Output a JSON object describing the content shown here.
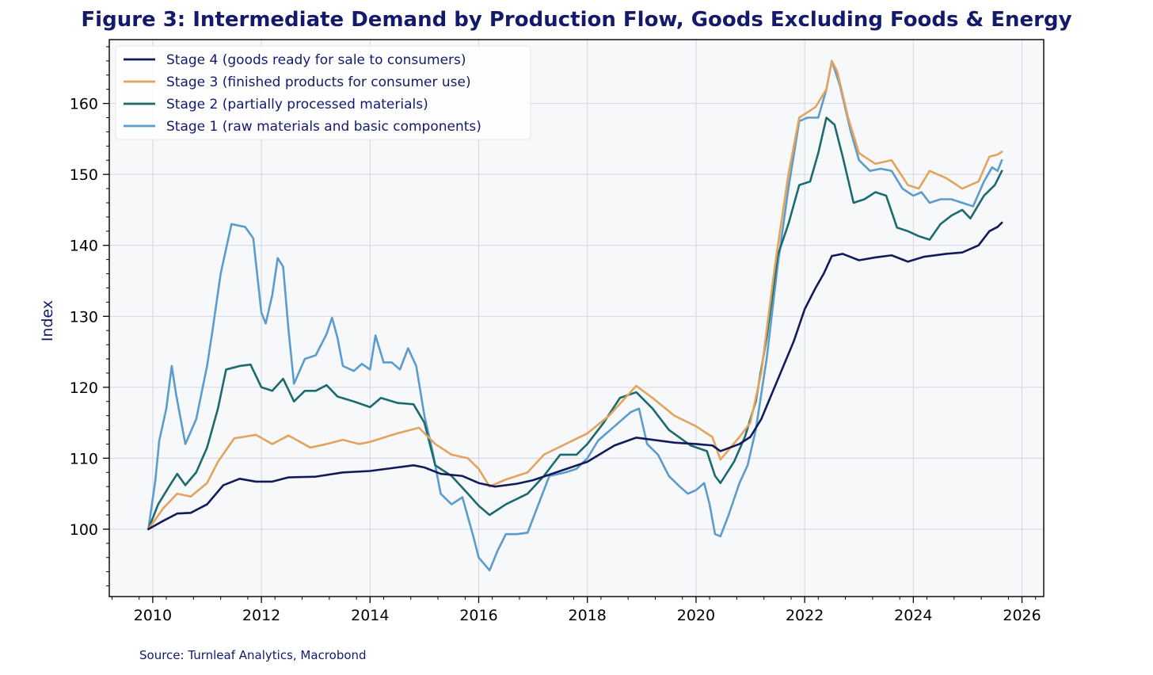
{
  "title": "Figure 3: Intermediate Demand by Production Flow, Goods Excluding Foods & Energy",
  "source": "Source: Turnleaf Analytics, Macrobond",
  "colors": {
    "title": "#131a6b",
    "plot_bg": "#f7f8fa",
    "grid": "#d3d6e4",
    "axis": "#000000"
  },
  "chart_data": {
    "type": "line",
    "title": "Figure 3: Intermediate Demand by Production Flow, Goods Excluding Foods & Energy",
    "xlabel": "",
    "ylabel": "Index",
    "xlim": [
      2009.2,
      2026.4
    ],
    "ylim": [
      90.5,
      169
    ],
    "x_ticks": [
      2010,
      2012,
      2014,
      2016,
      2018,
      2020,
      2022,
      2024,
      2026
    ],
    "y_ticks": [
      100,
      110,
      120,
      130,
      140,
      150,
      160
    ],
    "grid": true,
    "legend_position": "top-left",
    "series": [
      {
        "name": "Stage 4 (goods ready for sale to consumers)",
        "color": "#131a5c",
        "points": [
          [
            2009.92,
            100
          ],
          [
            2010.2,
            101.2
          ],
          [
            2010.45,
            102.2
          ],
          [
            2010.7,
            102.3
          ],
          [
            2011.0,
            103.5
          ],
          [
            2011.3,
            106.2
          ],
          [
            2011.6,
            107.1
          ],
          [
            2011.9,
            106.7
          ],
          [
            2012.2,
            106.7
          ],
          [
            2012.5,
            107.3
          ],
          [
            2013.0,
            107.4
          ],
          [
            2013.5,
            108
          ],
          [
            2014.0,
            108.2
          ],
          [
            2014.5,
            108.7
          ],
          [
            2014.8,
            109
          ],
          [
            2015.0,
            108.7
          ],
          [
            2015.3,
            107.8
          ],
          [
            2015.7,
            107.5
          ],
          [
            2016.0,
            106.5
          ],
          [
            2016.3,
            106
          ],
          [
            2016.7,
            106.4
          ],
          [
            2017.0,
            106.9
          ],
          [
            2017.5,
            108.2
          ],
          [
            2018.0,
            109.5
          ],
          [
            2018.5,
            111.8
          ],
          [
            2018.9,
            112.9
          ],
          [
            2019.2,
            112.6
          ],
          [
            2019.6,
            112.2
          ],
          [
            2020.0,
            112
          ],
          [
            2020.3,
            111.8
          ],
          [
            2020.45,
            111
          ],
          [
            2020.8,
            112
          ],
          [
            2021.0,
            113
          ],
          [
            2021.2,
            115.5
          ],
          [
            2021.5,
            121
          ],
          [
            2021.8,
            126.5
          ],
          [
            2022.0,
            131
          ],
          [
            2022.2,
            134
          ],
          [
            2022.35,
            136
          ],
          [
            2022.5,
            138.5
          ],
          [
            2022.7,
            138.8
          ],
          [
            2023.0,
            137.9
          ],
          [
            2023.3,
            138.3
          ],
          [
            2023.6,
            138.6
          ],
          [
            2023.9,
            137.7
          ],
          [
            2024.2,
            138.4
          ],
          [
            2024.6,
            138.8
          ],
          [
            2024.9,
            139
          ],
          [
            2025.2,
            140
          ],
          [
            2025.4,
            142
          ],
          [
            2025.55,
            142.6
          ],
          [
            2025.63,
            143.2
          ]
        ]
      },
      {
        "name": "Stage 3 (finished products for consumer use)",
        "color": "#e3a35c",
        "points": [
          [
            2009.92,
            100
          ],
          [
            2010.2,
            103
          ],
          [
            2010.45,
            105
          ],
          [
            2010.7,
            104.6
          ],
          [
            2011.0,
            106.5
          ],
          [
            2011.2,
            109.5
          ],
          [
            2011.5,
            112.8
          ],
          [
            2011.9,
            113.3
          ],
          [
            2012.2,
            112
          ],
          [
            2012.5,
            113.2
          ],
          [
            2012.9,
            111.5
          ],
          [
            2013.2,
            112
          ],
          [
            2013.5,
            112.6
          ],
          [
            2013.8,
            112
          ],
          [
            2014.0,
            112.3
          ],
          [
            2014.5,
            113.5
          ],
          [
            2014.9,
            114.3
          ],
          [
            2015.2,
            112
          ],
          [
            2015.5,
            110.5
          ],
          [
            2015.8,
            110
          ],
          [
            2016.0,
            108.5
          ],
          [
            2016.2,
            106
          ],
          [
            2016.5,
            107
          ],
          [
            2016.9,
            108
          ],
          [
            2017.2,
            110.5
          ],
          [
            2017.6,
            112
          ],
          [
            2018.0,
            113.5
          ],
          [
            2018.4,
            116
          ],
          [
            2018.9,
            120.2
          ],
          [
            2019.2,
            118.5
          ],
          [
            2019.6,
            116
          ],
          [
            2020.0,
            114.5
          ],
          [
            2020.3,
            113
          ],
          [
            2020.45,
            109.8
          ],
          [
            2020.8,
            113
          ],
          [
            2021.0,
            115
          ],
          [
            2021.2,
            122
          ],
          [
            2021.45,
            137
          ],
          [
            2021.7,
            150
          ],
          [
            2021.9,
            158
          ],
          [
            2022.2,
            159.5
          ],
          [
            2022.4,
            162
          ],
          [
            2022.5,
            166
          ],
          [
            2022.6,
            164.5
          ],
          [
            2022.8,
            158
          ],
          [
            2023.0,
            153
          ],
          [
            2023.3,
            151.5
          ],
          [
            2023.6,
            152
          ],
          [
            2023.9,
            148.5
          ],
          [
            2024.1,
            148
          ],
          [
            2024.3,
            150.5
          ],
          [
            2024.6,
            149.5
          ],
          [
            2024.9,
            148
          ],
          [
            2025.2,
            149
          ],
          [
            2025.4,
            152.5
          ],
          [
            2025.55,
            152.8
          ],
          [
            2025.63,
            153.2
          ]
        ]
      },
      {
        "name": "Stage 2 (partially processed materials)",
        "color": "#1a6a6e",
        "points": [
          [
            2009.92,
            100
          ],
          [
            2010.1,
            103.5
          ],
          [
            2010.3,
            106
          ],
          [
            2010.45,
            107.8
          ],
          [
            2010.6,
            106.2
          ],
          [
            2010.8,
            108
          ],
          [
            2011.0,
            111.5
          ],
          [
            2011.2,
            117
          ],
          [
            2011.35,
            122.5
          ],
          [
            2011.6,
            123
          ],
          [
            2011.8,
            123.2
          ],
          [
            2012.0,
            120
          ],
          [
            2012.2,
            119.5
          ],
          [
            2012.4,
            121.2
          ],
          [
            2012.6,
            118
          ],
          [
            2012.8,
            119.5
          ],
          [
            2013.0,
            119.5
          ],
          [
            2013.2,
            120.3
          ],
          [
            2013.4,
            118.7
          ],
          [
            2013.7,
            118
          ],
          [
            2014.0,
            117.2
          ],
          [
            2014.2,
            118.5
          ],
          [
            2014.5,
            117.8
          ],
          [
            2014.8,
            117.6
          ],
          [
            2015.0,
            115
          ],
          [
            2015.2,
            109
          ],
          [
            2015.5,
            107.5
          ],
          [
            2015.8,
            105
          ],
          [
            2016.0,
            103.3
          ],
          [
            2016.2,
            102
          ],
          [
            2016.5,
            103.5
          ],
          [
            2016.9,
            105
          ],
          [
            2017.2,
            107.5
          ],
          [
            2017.5,
            110.5
          ],
          [
            2017.8,
            110.5
          ],
          [
            2018.0,
            112
          ],
          [
            2018.3,
            115
          ],
          [
            2018.6,
            118.5
          ],
          [
            2018.9,
            119.3
          ],
          [
            2019.2,
            117
          ],
          [
            2019.5,
            114
          ],
          [
            2019.9,
            111.8
          ],
          [
            2020.2,
            111
          ],
          [
            2020.35,
            107.5
          ],
          [
            2020.45,
            106.5
          ],
          [
            2020.7,
            109.5
          ],
          [
            2020.9,
            113
          ],
          [
            2021.1,
            118
          ],
          [
            2021.3,
            127
          ],
          [
            2021.5,
            138.5
          ],
          [
            2021.7,
            143
          ],
          [
            2021.9,
            148.5
          ],
          [
            2022.1,
            149
          ],
          [
            2022.25,
            153
          ],
          [
            2022.4,
            158
          ],
          [
            2022.55,
            157
          ],
          [
            2022.7,
            152.5
          ],
          [
            2022.9,
            146
          ],
          [
            2023.1,
            146.5
          ],
          [
            2023.3,
            147.5
          ],
          [
            2023.5,
            147
          ],
          [
            2023.7,
            142.5
          ],
          [
            2023.9,
            142
          ],
          [
            2024.1,
            141.3
          ],
          [
            2024.3,
            140.8
          ],
          [
            2024.5,
            143
          ],
          [
            2024.7,
            144.2
          ],
          [
            2024.9,
            145
          ],
          [
            2025.05,
            143.8
          ],
          [
            2025.3,
            147
          ],
          [
            2025.5,
            148.5
          ],
          [
            2025.63,
            150.5
          ]
        ]
      },
      {
        "name": "Stage 1 (raw materials and basic components)",
        "color": "#5a9ccc",
        "points": [
          [
            2009.92,
            100
          ],
          [
            2010.05,
            107
          ],
          [
            2010.12,
            112.5
          ],
          [
            2010.25,
            117
          ],
          [
            2010.35,
            123
          ],
          [
            2010.43,
            119
          ],
          [
            2010.6,
            112
          ],
          [
            2010.8,
            115.5
          ],
          [
            2011.0,
            123
          ],
          [
            2011.1,
            128
          ],
          [
            2011.25,
            136
          ],
          [
            2011.45,
            143
          ],
          [
            2011.7,
            142.6
          ],
          [
            2011.85,
            141
          ],
          [
            2012.0,
            130.5
          ],
          [
            2012.08,
            129
          ],
          [
            2012.2,
            133
          ],
          [
            2012.3,
            138.2
          ],
          [
            2012.4,
            137
          ],
          [
            2012.5,
            128
          ],
          [
            2012.6,
            120.5
          ],
          [
            2012.8,
            124
          ],
          [
            2013.0,
            124.5
          ],
          [
            2013.2,
            127.5
          ],
          [
            2013.3,
            129.8
          ],
          [
            2013.4,
            127
          ],
          [
            2013.5,
            123
          ],
          [
            2013.7,
            122.3
          ],
          [
            2013.85,
            123.3
          ],
          [
            2014.0,
            122.5
          ],
          [
            2014.1,
            127.3
          ],
          [
            2014.25,
            123.5
          ],
          [
            2014.4,
            123.5
          ],
          [
            2014.55,
            122.5
          ],
          [
            2014.7,
            125.5
          ],
          [
            2014.85,
            123
          ],
          [
            2015.0,
            116
          ],
          [
            2015.15,
            111
          ],
          [
            2015.3,
            105
          ],
          [
            2015.5,
            103.5
          ],
          [
            2015.7,
            104.5
          ],
          [
            2015.9,
            99
          ],
          [
            2016.0,
            96
          ],
          [
            2016.2,
            94.2
          ],
          [
            2016.35,
            97
          ],
          [
            2016.5,
            99.3
          ],
          [
            2016.7,
            99.3
          ],
          [
            2016.9,
            99.5
          ],
          [
            2017.1,
            103.5
          ],
          [
            2017.3,
            107.5
          ],
          [
            2017.6,
            108
          ],
          [
            2017.8,
            108.5
          ],
          [
            2018.0,
            110
          ],
          [
            2018.2,
            112.5
          ],
          [
            2018.5,
            114.5
          ],
          [
            2018.8,
            116.5
          ],
          [
            2018.95,
            117
          ],
          [
            2019.1,
            112
          ],
          [
            2019.3,
            110.5
          ],
          [
            2019.5,
            107.5
          ],
          [
            2019.7,
            106
          ],
          [
            2019.85,
            105
          ],
          [
            2020.0,
            105.5
          ],
          [
            2020.15,
            106.5
          ],
          [
            2020.25,
            103.5
          ],
          [
            2020.35,
            99.3
          ],
          [
            2020.45,
            99
          ],
          [
            2020.6,
            102
          ],
          [
            2020.8,
            106.5
          ],
          [
            2020.95,
            109
          ],
          [
            2021.1,
            114
          ],
          [
            2021.3,
            124
          ],
          [
            2021.5,
            137
          ],
          [
            2021.7,
            148
          ],
          [
            2021.9,
            157.5
          ],
          [
            2022.05,
            158
          ],
          [
            2022.25,
            158
          ],
          [
            2022.4,
            162
          ],
          [
            2022.5,
            166
          ],
          [
            2022.65,
            162.5
          ],
          [
            2022.85,
            156
          ],
          [
            2023.0,
            152
          ],
          [
            2023.2,
            150.5
          ],
          [
            2023.4,
            150.8
          ],
          [
            2023.6,
            150.5
          ],
          [
            2023.8,
            148
          ],
          [
            2024.0,
            147
          ],
          [
            2024.15,
            147.5
          ],
          [
            2024.3,
            146
          ],
          [
            2024.5,
            146.5
          ],
          [
            2024.7,
            146.5
          ],
          [
            2024.9,
            146
          ],
          [
            2025.1,
            145.5
          ],
          [
            2025.3,
            149
          ],
          [
            2025.45,
            151
          ],
          [
            2025.55,
            150.5
          ],
          [
            2025.63,
            152
          ]
        ]
      }
    ]
  }
}
